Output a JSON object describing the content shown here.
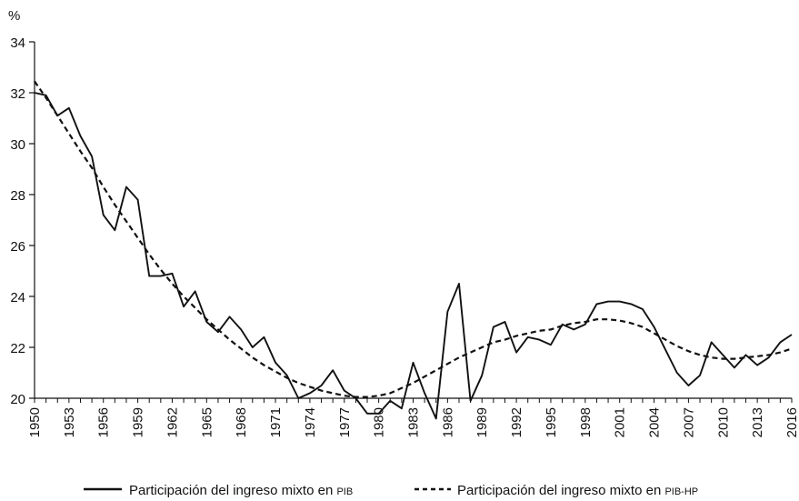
{
  "chart_data": {
    "type": "line",
    "title": "",
    "xlabel": "",
    "ylabel": "%",
    "ylim": [
      20,
      34
    ],
    "yticks": [
      20,
      22,
      24,
      26,
      28,
      30,
      32,
      34
    ],
    "xlim": [
      1950,
      2016
    ],
    "xticks": [
      1950,
      1953,
      1956,
      1959,
      1962,
      1965,
      1968,
      1971,
      1974,
      1977,
      1980,
      1983,
      1986,
      1989,
      1992,
      1995,
      1998,
      2001,
      2004,
      2007,
      2010,
      2013,
      2016
    ],
    "grid": false,
    "legend_position": "bottom",
    "x": [
      1950,
      1951,
      1952,
      1953,
      1954,
      1955,
      1956,
      1957,
      1958,
      1959,
      1960,
      1961,
      1962,
      1963,
      1964,
      1965,
      1966,
      1967,
      1968,
      1969,
      1970,
      1971,
      1972,
      1973,
      1974,
      1975,
      1976,
      1977,
      1978,
      1979,
      1980,
      1981,
      1982,
      1983,
      1984,
      1985,
      1986,
      1987,
      1988,
      1989,
      1990,
      1991,
      1992,
      1993,
      1994,
      1995,
      1996,
      1997,
      1998,
      1999,
      2000,
      2001,
      2002,
      2003,
      2004,
      2005,
      2006,
      2007,
      2008,
      2009,
      2010,
      2011,
      2012,
      2013,
      2014,
      2015,
      2016
    ],
    "series": [
      {
        "name": "Participación del ingreso mixto en PIB",
        "name_main": "Participación del ingreso mixto en ",
        "name_suffix": "PIB",
        "style": "solid",
        "values": [
          32.0,
          31.9,
          31.1,
          31.4,
          30.3,
          29.5,
          27.2,
          26.6,
          28.3,
          27.8,
          24.8,
          24.8,
          24.9,
          23.6,
          24.2,
          23.0,
          22.6,
          23.2,
          22.7,
          22.0,
          22.4,
          21.4,
          20.9,
          20.0,
          20.2,
          20.5,
          21.1,
          20.3,
          20.0,
          19.4,
          19.4,
          19.9,
          19.6,
          21.4,
          20.2,
          19.2,
          23.4,
          24.5,
          19.9,
          20.9,
          22.8,
          23.0,
          21.8,
          22.4,
          22.3,
          22.1,
          22.9,
          22.7,
          22.9,
          23.7,
          23.8,
          23.8,
          23.7,
          23.5,
          22.8,
          21.9,
          21.0,
          20.5,
          20.9,
          22.2,
          21.7,
          21.2,
          21.7,
          21.3,
          21.6,
          22.2,
          22.5
        ]
      },
      {
        "name": "Participación del ingreso mixto en PIB-HP",
        "name_main": "Participación del ingreso mixto en ",
        "name_suffix": "PIB-HP",
        "style": "dashed",
        "values": [
          32.45,
          31.8,
          31.1,
          30.4,
          29.7,
          29.05,
          28.3,
          27.6,
          26.95,
          26.3,
          25.65,
          25.05,
          24.5,
          24.0,
          23.55,
          23.1,
          22.7,
          22.3,
          21.95,
          21.6,
          21.3,
          21.05,
          20.8,
          20.6,
          20.45,
          20.3,
          20.2,
          20.1,
          20.05,
          20.05,
          20.1,
          20.2,
          20.4,
          20.6,
          20.85,
          21.1,
          21.35,
          21.6,
          21.8,
          22.0,
          22.2,
          22.3,
          22.45,
          22.55,
          22.65,
          22.7,
          22.85,
          22.95,
          23.0,
          23.1,
          23.1,
          23.05,
          22.95,
          22.8,
          22.55,
          22.3,
          22.05,
          21.85,
          21.7,
          21.6,
          21.55,
          21.55,
          21.6,
          21.65,
          21.7,
          21.8,
          21.95
        ]
      }
    ]
  }
}
